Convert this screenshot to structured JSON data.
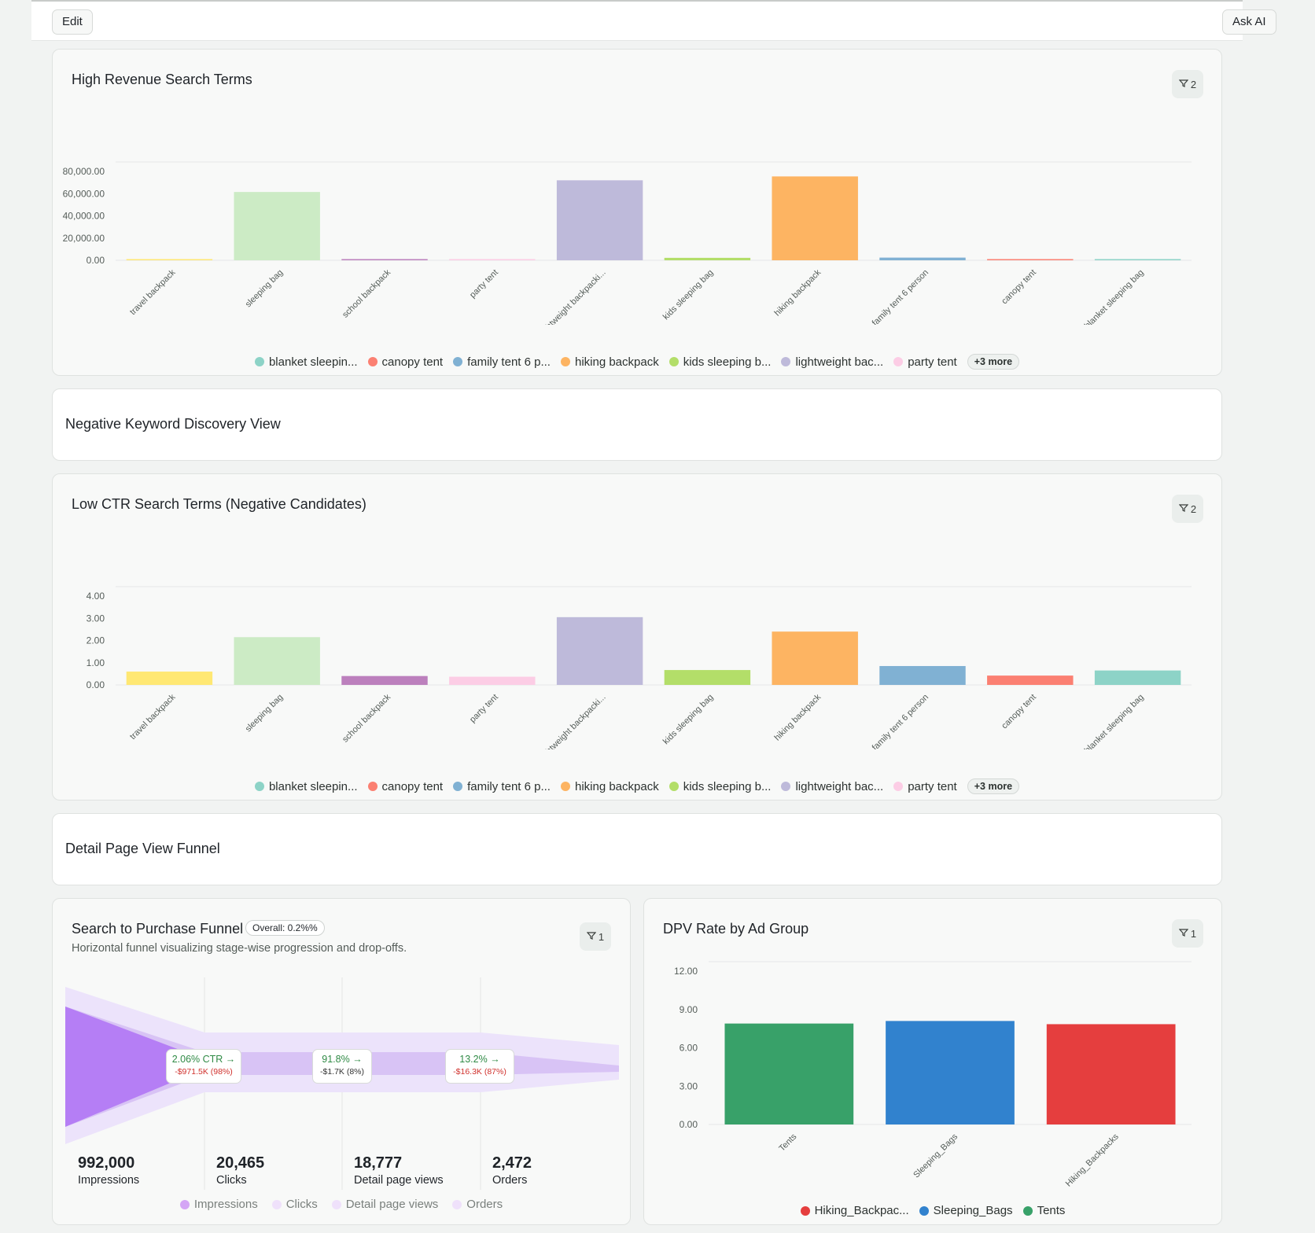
{
  "toolbar": {
    "edit_label": "Edit",
    "ask_ai_label": "Ask AI"
  },
  "search_terms": [
    "travel backpack",
    "sleeping bag",
    "school backpack",
    "party tent",
    "lightweight backpacki...",
    "kids sleeping bag",
    "hiking backpack",
    "family tent 6 person",
    "canopy tent",
    "blanket sleeping bag"
  ],
  "bar_colors": [
    "#ffe873",
    "#ccebc5",
    "#bc80bd",
    "#fccde5",
    "#bebada",
    "#b3de69",
    "#fdb462",
    "#80b1d3",
    "#fb8072",
    "#8dd3c7"
  ],
  "legend_terms": [
    {
      "label": "blanket sleepin...",
      "color": "#8dd3c7"
    },
    {
      "label": "canopy tent",
      "color": "#fb8072"
    },
    {
      "label": "family tent 6 p...",
      "color": "#80b1d3"
    },
    {
      "label": "hiking backpack",
      "color": "#fdb462"
    },
    {
      "label": "kids sleeping b...",
      "color": "#b3de69"
    },
    {
      "label": "lightweight bac...",
      "color": "#bebada"
    },
    {
      "label": "party tent",
      "color": "#fccde5"
    }
  ],
  "legend_more": "+3 more",
  "revenue_card": {
    "title": "High Revenue Search Terms",
    "filter_count": "2"
  },
  "negative_section": {
    "title": "Negative Keyword Discovery View"
  },
  "ctr_card": {
    "title": "Low CTR Search Terms (Negative Candidates)",
    "filter_count": "2"
  },
  "dpv_section": {
    "title": "Detail Page View Funnel"
  },
  "funnel": {
    "title": "Search to Purchase Funnel",
    "overall_badge": "Overall: 0.2%%",
    "subtitle": "Horizontal funnel visualizing stage-wise progression and drop-offs.",
    "filter_count": "1",
    "stages": [
      {
        "value": "992,000",
        "label": "Impressions",
        "legend_color": "#d4a6f5"
      },
      {
        "value": "20,465",
        "label": "Clicks",
        "legend_color": "#efe1fb"
      },
      {
        "value": "18,777",
        "label": "Detail page views",
        "legend_color": "#efe1fb"
      },
      {
        "value": "2,472",
        "label": "Orders",
        "legend_color": "#efe1fb"
      }
    ],
    "conversions": [
      {
        "rate": "2.06% CTR →",
        "drop": "-$971.5K (98%)"
      },
      {
        "rate": "91.8% →",
        "drop": "-$1.7K (8%)"
      },
      {
        "rate": "13.2% →",
        "drop": "-$16.3K (87%)"
      }
    ]
  },
  "adgroup_card": {
    "title": "DPV Rate by Ad Group",
    "filter_count": "1",
    "legend": [
      {
        "label": "Hiking_Backpac...",
        "color": "#e53e3e"
      },
      {
        "label": "Sleeping_Bags",
        "color": "#3182ce"
      },
      {
        "label": "Tents",
        "color": "#38a169"
      }
    ]
  },
  "chart_data": [
    {
      "type": "bar",
      "title": "High Revenue Search Terms",
      "categories": [
        "travel backpack",
        "sleeping bag",
        "school backpack",
        "party tent",
        "lightweight backpacki...",
        "kids sleeping bag",
        "hiking backpack",
        "family tent 6 person",
        "canopy tent",
        "blanket sleeping bag"
      ],
      "values": [
        600,
        61500,
        800,
        300,
        72000,
        2200,
        75500,
        2400,
        400,
        900
      ],
      "ylim": [
        0,
        80000
      ],
      "yticks": [
        "0.00",
        "20,000.00",
        "40,000.00",
        "60,000.00",
        "80,000.00"
      ],
      "grid": true,
      "legend_position": "bottom"
    },
    {
      "type": "bar",
      "title": "Low CTR Search Terms (Negative Candidates)",
      "categories": [
        "travel backpack",
        "sleeping bag",
        "school backpack",
        "party tent",
        "lightweight backpacki...",
        "kids sleeping bag",
        "hiking backpack",
        "family tent 6 person",
        "canopy tent",
        "blanket sleeping bag"
      ],
      "values": [
        0.6,
        2.15,
        0.4,
        0.37,
        3.05,
        0.67,
        2.4,
        0.85,
        0.42,
        0.65
      ],
      "ylim": [
        0,
        4
      ],
      "yticks": [
        "0.00",
        "1.00",
        "2.00",
        "3.00",
        "4.00"
      ],
      "grid": true,
      "legend_position": "bottom"
    },
    {
      "type": "bar",
      "title": "DPV Rate by Ad Group",
      "categories": [
        "Tents",
        "Sleeping_Bags",
        "Hiking_Backpacks"
      ],
      "values": [
        7.9,
        8.1,
        7.85
      ],
      "colors": [
        "#38a169",
        "#3182ce",
        "#e53e3e"
      ],
      "ylim": [
        0,
        12
      ],
      "yticks": [
        "0.00",
        "3.00",
        "6.00",
        "9.00",
        "12.00"
      ],
      "grid": true,
      "legend_position": "bottom"
    }
  ]
}
